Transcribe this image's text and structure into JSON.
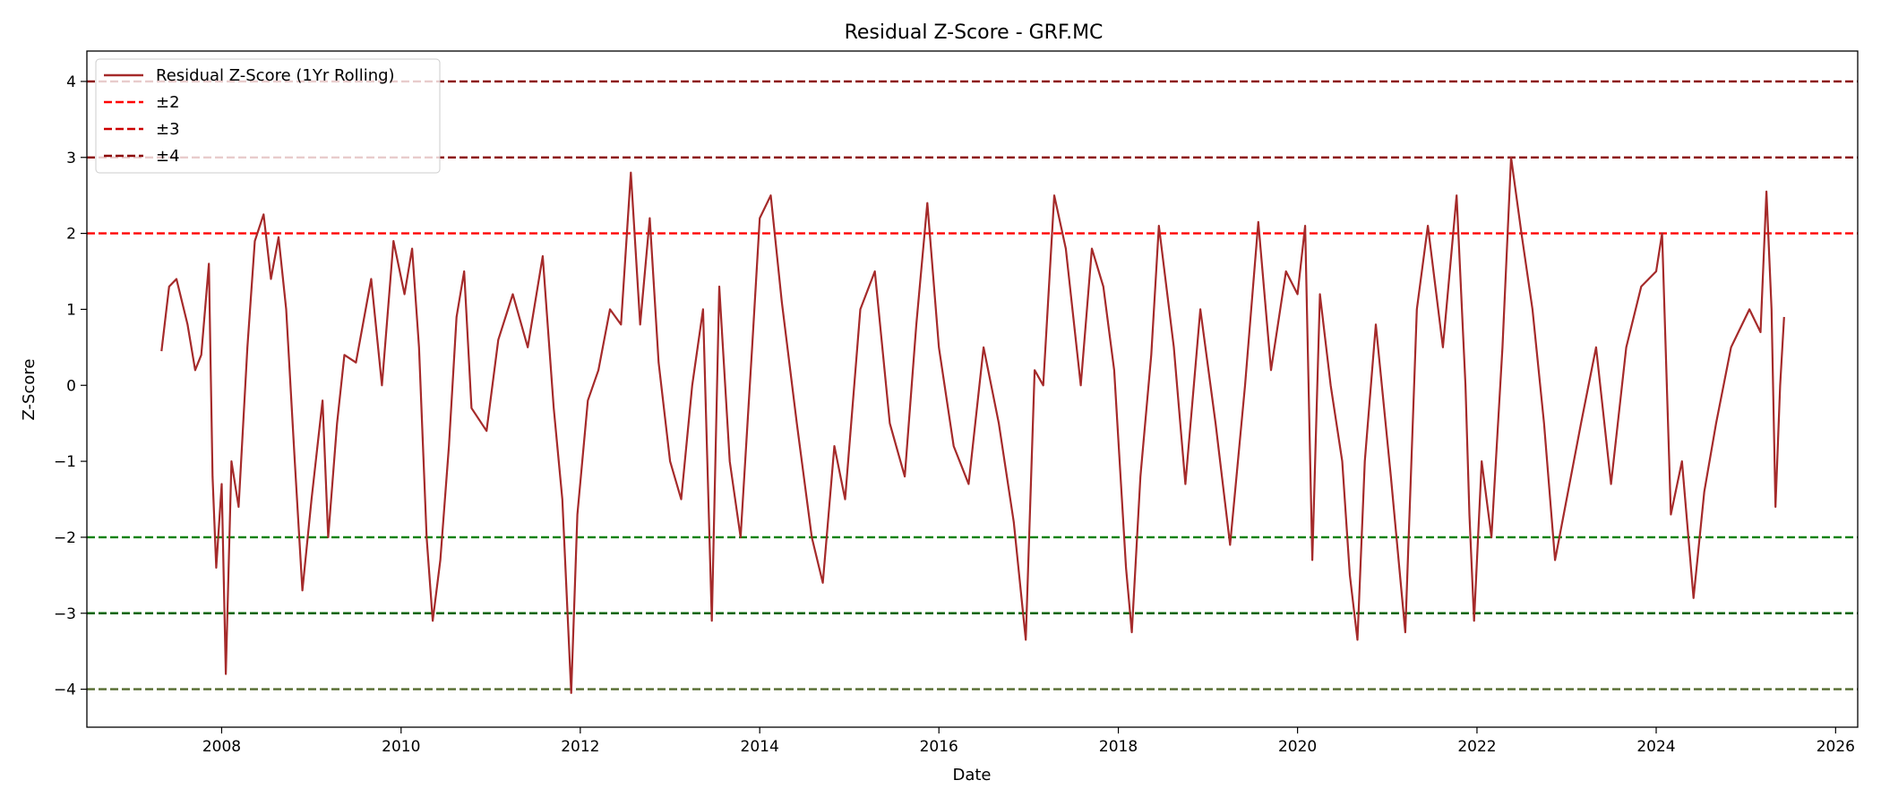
{
  "chart_data": {
    "type": "line",
    "title": "Residual Z-Score - GRF.MC",
    "xlabel": "Date",
    "ylabel": "Z-Score",
    "xlim": [
      "2006-07-01",
      "2026-04-01"
    ],
    "ylim": [
      -4.5,
      4.4
    ],
    "x_ticks": [
      "2008",
      "2010",
      "2012",
      "2014",
      "2016",
      "2018",
      "2020",
      "2022",
      "2024",
      "2026"
    ],
    "y_ticks": [
      -4,
      -3,
      -2,
      -1,
      0,
      1,
      2,
      3,
      4
    ],
    "y_tick_labels": [
      "−4",
      "−3",
      "−2",
      "−1",
      "0",
      "1",
      "2",
      "3",
      "4"
    ],
    "grid": false,
    "legend_position": "top-left",
    "series": [
      {
        "name": "Residual Z-Score (1Yr Rolling)",
        "color": "#a52a2a",
        "style": "solid",
        "points": [
          [
            "2007-05-01",
            0.45
          ],
          [
            "2007-06-01",
            1.3
          ],
          [
            "2007-07-01",
            1.4
          ],
          [
            "2007-08-15",
            0.8
          ],
          [
            "2007-09-15",
            0.2
          ],
          [
            "2007-10-10",
            0.4
          ],
          [
            "2007-11-10",
            1.6
          ],
          [
            "2007-11-25",
            -1.2
          ],
          [
            "2007-12-10",
            -2.4
          ],
          [
            "2008-01-01",
            -1.3
          ],
          [
            "2008-01-18",
            -3.8
          ],
          [
            "2008-02-10",
            -1.0
          ],
          [
            "2008-03-10",
            -1.6
          ],
          [
            "2008-04-15",
            0.5
          ],
          [
            "2008-05-15",
            1.9
          ],
          [
            "2008-06-20",
            2.25
          ],
          [
            "2008-07-20",
            1.4
          ],
          [
            "2008-08-20",
            1.95
          ],
          [
            "2008-09-20",
            1.0
          ],
          [
            "2008-10-25",
            -1.0
          ],
          [
            "2008-11-25",
            -2.7
          ],
          [
            "2009-01-01",
            -1.5
          ],
          [
            "2009-02-15",
            -0.2
          ],
          [
            "2009-03-10",
            -2.0
          ],
          [
            "2009-04-15",
            -0.5
          ],
          [
            "2009-05-15",
            0.4
          ],
          [
            "2009-07-01",
            0.3
          ],
          [
            "2009-09-01",
            1.4
          ],
          [
            "2009-10-15",
            0.0
          ],
          [
            "2009-12-01",
            1.9
          ],
          [
            "2010-01-15",
            1.2
          ],
          [
            "2010-02-15",
            1.8
          ],
          [
            "2010-03-15",
            0.5
          ],
          [
            "2010-04-15",
            -2.0
          ],
          [
            "2010-05-10",
            -3.1
          ],
          [
            "2010-06-10",
            -2.3
          ],
          [
            "2010-07-15",
            -0.8
          ],
          [
            "2010-08-15",
            0.9
          ],
          [
            "2010-09-15",
            1.5
          ],
          [
            "2010-10-15",
            -0.3
          ],
          [
            "2010-12-15",
            -0.6
          ],
          [
            "2011-02-01",
            0.6
          ],
          [
            "2011-04-01",
            1.2
          ],
          [
            "2011-06-01",
            0.5
          ],
          [
            "2011-08-01",
            1.7
          ],
          [
            "2011-09-15",
            -0.3
          ],
          [
            "2011-10-20",
            -1.5
          ],
          [
            "2011-11-25",
            -4.05
          ],
          [
            "2011-12-20",
            -1.7
          ],
          [
            "2012-02-01",
            -0.2
          ],
          [
            "2012-03-15",
            0.2
          ],
          [
            "2012-05-01",
            1.0
          ],
          [
            "2012-06-15",
            0.8
          ],
          [
            "2012-07-25",
            2.8
          ],
          [
            "2012-09-01",
            0.8
          ],
          [
            "2012-10-10",
            2.2
          ],
          [
            "2012-11-15",
            0.3
          ],
          [
            "2013-01-01",
            -1.0
          ],
          [
            "2013-02-15",
            -1.5
          ],
          [
            "2013-04-01",
            0.0
          ],
          [
            "2013-05-15",
            1.0
          ],
          [
            "2013-06-20",
            -3.1
          ],
          [
            "2013-07-20",
            1.3
          ],
          [
            "2013-09-01",
            -1.0
          ],
          [
            "2013-10-15",
            -2.0
          ],
          [
            "2013-12-01",
            0.5
          ],
          [
            "2014-01-01",
            2.2
          ],
          [
            "2014-02-15",
            2.5
          ],
          [
            "2014-04-01",
            1.1
          ],
          [
            "2014-06-01",
            -0.5
          ],
          [
            "2014-08-01",
            -2.0
          ],
          [
            "2014-09-15",
            -2.6
          ],
          [
            "2014-11-01",
            -0.8
          ],
          [
            "2014-12-15",
            -1.5
          ],
          [
            "2015-02-15",
            1.0
          ],
          [
            "2015-04-15",
            1.5
          ],
          [
            "2015-06-15",
            -0.5
          ],
          [
            "2015-08-15",
            -1.2
          ],
          [
            "2015-10-01",
            0.8
          ],
          [
            "2015-11-15",
            2.4
          ],
          [
            "2016-01-01",
            0.5
          ],
          [
            "2016-03-01",
            -0.8
          ],
          [
            "2016-05-01",
            -1.3
          ],
          [
            "2016-07-01",
            0.5
          ],
          [
            "2016-09-01",
            -0.5
          ],
          [
            "2016-11-01",
            -1.8
          ],
          [
            "2016-12-20",
            -3.35
          ],
          [
            "2017-01-25",
            0.2
          ],
          [
            "2017-03-01",
            0.0
          ],
          [
            "2017-04-15",
            2.5
          ],
          [
            "2017-06-01",
            1.8
          ],
          [
            "2017-08-01",
            0.0
          ],
          [
            "2017-09-15",
            1.8
          ],
          [
            "2017-11-01",
            1.3
          ],
          [
            "2017-12-15",
            0.2
          ],
          [
            "2018-02-01",
            -2.4
          ],
          [
            "2018-02-25",
            -3.25
          ],
          [
            "2018-04-01",
            -1.2
          ],
          [
            "2018-05-15",
            0.4
          ],
          [
            "2018-06-15",
            2.1
          ],
          [
            "2018-08-15",
            0.5
          ],
          [
            "2018-10-01",
            -1.3
          ],
          [
            "2018-12-01",
            1.0
          ],
          [
            "2019-02-01",
            -0.5
          ],
          [
            "2019-04-01",
            -2.1
          ],
          [
            "2019-06-01",
            0.0
          ],
          [
            "2019-07-25",
            2.15
          ],
          [
            "2019-09-15",
            0.2
          ],
          [
            "2019-11-15",
            1.5
          ],
          [
            "2020-01-01",
            1.2
          ],
          [
            "2020-02-01",
            2.1
          ],
          [
            "2020-03-01",
            -2.3
          ],
          [
            "2020-04-01",
            1.2
          ],
          [
            "2020-05-15",
            0.0
          ],
          [
            "2020-07-01",
            -1.0
          ],
          [
            "2020-08-01",
            -2.5
          ],
          [
            "2020-09-01",
            -3.35
          ],
          [
            "2020-10-01",
            -1.0
          ],
          [
            "2020-11-15",
            0.8
          ],
          [
            "2021-01-15",
            -1.2
          ],
          [
            "2021-03-15",
            -3.25
          ],
          [
            "2021-05-01",
            1.0
          ],
          [
            "2021-06-15",
            2.1
          ],
          [
            "2021-08-15",
            0.5
          ],
          [
            "2021-10-10",
            2.5
          ],
          [
            "2021-11-15",
            0.0
          ],
          [
            "2021-12-01",
            -1.7
          ],
          [
            "2021-12-20",
            -3.1
          ],
          [
            "2022-01-20",
            -1.0
          ],
          [
            "2022-03-01",
            -2.0
          ],
          [
            "2022-04-15",
            0.5
          ],
          [
            "2022-05-20",
            3.0
          ],
          [
            "2022-07-01",
            2.0
          ],
          [
            "2022-08-15",
            1.0
          ],
          [
            "2022-10-01",
            -0.5
          ],
          [
            "2022-11-15",
            -2.3
          ],
          [
            "2023-01-01",
            -1.5
          ],
          [
            "2023-03-01",
            -0.5
          ],
          [
            "2023-05-01",
            0.5
          ],
          [
            "2023-07-01",
            -1.3
          ],
          [
            "2023-09-01",
            0.5
          ],
          [
            "2023-11-01",
            1.3
          ],
          [
            "2024-01-01",
            1.5
          ],
          [
            "2024-01-25",
            2.0
          ],
          [
            "2024-03-01",
            -1.7
          ],
          [
            "2024-04-15",
            -1.0
          ],
          [
            "2024-06-01",
            -2.8
          ],
          [
            "2024-07-15",
            -1.4
          ],
          [
            "2024-09-01",
            -0.5
          ],
          [
            "2024-11-01",
            0.5
          ],
          [
            "2025-01-15",
            1.0
          ],
          [
            "2025-03-01",
            0.7
          ],
          [
            "2025-03-25",
            2.55
          ],
          [
            "2025-04-15",
            1.0
          ],
          [
            "2025-05-01",
            -1.6
          ],
          [
            "2025-05-20",
            0.0
          ],
          [
            "2025-06-05",
            0.9
          ]
        ]
      },
      {
        "name": "±2",
        "color": "#ff0000",
        "style": "dashed",
        "value": 2
      },
      {
        "name": "±3",
        "color": "#cc0000",
        "style": "dashed",
        "value": 3
      },
      {
        "name": "±4",
        "color": "#8b0000",
        "style": "dashed",
        "value": 4
      }
    ],
    "reference_lines": [
      {
        "value": 4,
        "color": "#8b0000"
      },
      {
        "value": 3,
        "color": "#8b0000"
      },
      {
        "value": 2,
        "color": "#ff0000"
      },
      {
        "value": -2,
        "color": "#008000"
      },
      {
        "value": -3,
        "color": "#006400"
      },
      {
        "value": -4,
        "color": "#556b2f"
      }
    ]
  }
}
